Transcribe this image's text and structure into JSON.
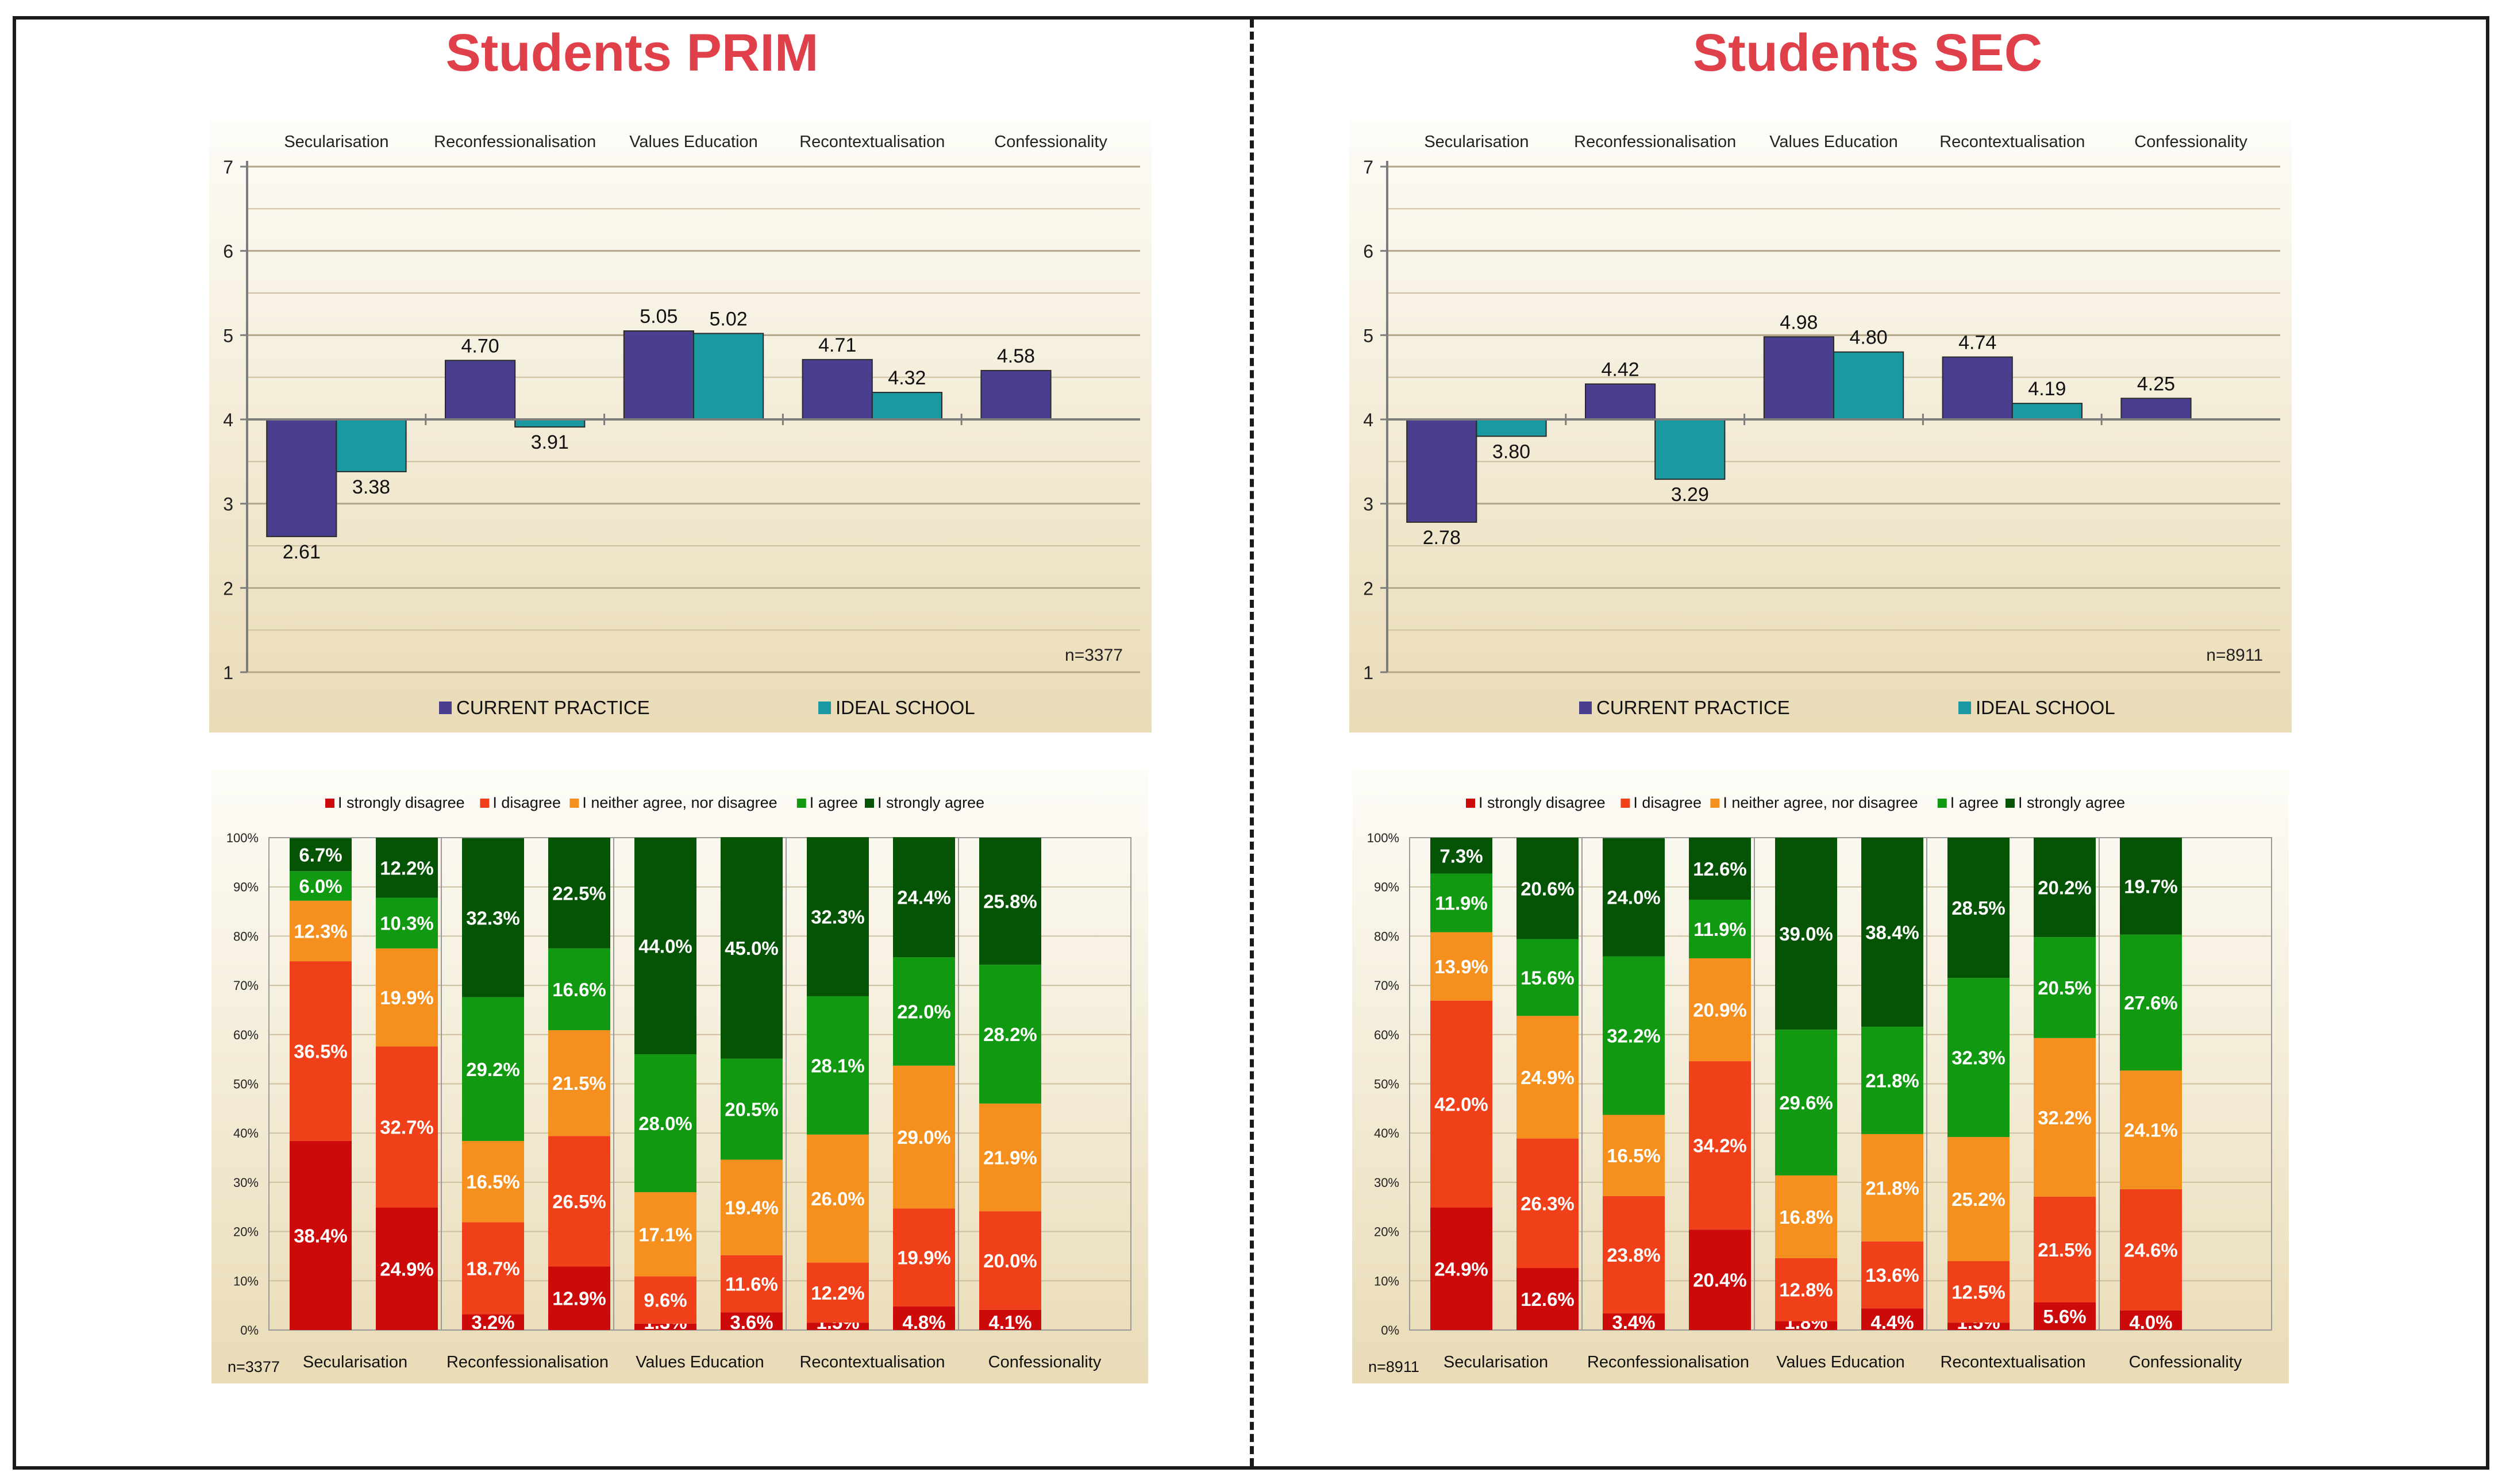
{
  "panels": [
    {
      "title": "Students PRIM",
      "chart_data": [
        {
          "type": "bar",
          "subtype": "baseline-4 diverging bar",
          "baseline": 4,
          "categories": [
            "Secularisation",
            "Reconfessionalisation",
            "Values Education",
            "Recontextualisation",
            "Confessionality"
          ],
          "series": [
            {
              "name": "CURRENT PRACTICE",
              "color": "#4a3f8f",
              "values": [
                2.61,
                4.7,
                5.05,
                4.71,
                4.58
              ],
              "labels": [
                "2.61",
                "4.70",
                "5.05",
                "4.71",
                "4.58"
              ]
            },
            {
              "name": "IDEAL SCHOOL",
              "color": "#1a9aa0",
              "values": [
                3.38,
                3.91,
                5.02,
                4.32,
                null
              ],
              "labels": [
                "3.38",
                "3.91",
                "5.02",
                "4.32",
                ""
              ]
            }
          ],
          "ylim": [
            1,
            7
          ],
          "yticks": [
            "1",
            "2",
            "3",
            "4",
            "5",
            "6",
            "7"
          ],
          "n_label": "n=3377",
          "legend_position": "bottom"
        },
        {
          "type": "bar",
          "subtype": "100% stacked bar",
          "legend": [
            {
              "name": "I strongly disagree",
              "color": "#cc0a0a"
            },
            {
              "name": "I disagree",
              "color": "#f0401a"
            },
            {
              "name": "I neither agree, nor disagree",
              "color": "#f5901e"
            },
            {
              "name": "I agree",
              "color": "#119a11"
            },
            {
              "name": "I strongly agree",
              "color": "#055405"
            }
          ],
          "groups": [
            "Secularisation",
            "Reconfessionalisation",
            "Values Education",
            "Recontextualisation",
            "Confessionality"
          ],
          "bars": [
            {
              "group": "Secularisation",
              "series": "CURRENT PRACTICE",
              "values": [
                38.4,
                36.5,
                12.3,
                6.0,
                6.7
              ],
              "labels": [
                "38.4%",
                "36.5%",
                "12.3%",
                "6.0%",
                "6.7%"
              ]
            },
            {
              "group": "Secularisation",
              "series": "IDEAL SCHOOL",
              "values": [
                24.9,
                32.7,
                19.9,
                10.3,
                12.2
              ],
              "labels": [
                "24.9%",
                "32.7%",
                "19.9%",
                "10.3%",
                "12.2%"
              ]
            },
            {
              "group": "Reconfessionalisation",
              "series": "CURRENT PRACTICE",
              "values": [
                3.2,
                18.7,
                16.5,
                29.2,
                32.3
              ],
              "labels": [
                "3.2%",
                "18.7%",
                "16.5%",
                "29.2%",
                "32.3%"
              ]
            },
            {
              "group": "Reconfessionalisation",
              "series": "IDEAL SCHOOL",
              "values": [
                12.9,
                26.5,
                21.5,
                16.6,
                22.5
              ],
              "labels": [
                "12.9%",
                "26.5%",
                "21.5%",
                "16.6%",
                "22.5%"
              ]
            },
            {
              "group": "Values Education",
              "series": "CURRENT PRACTICE",
              "values": [
                1.3,
                9.6,
                17.1,
                28.0,
                44.0
              ],
              "labels": [
                "1.3%",
                "9.6%",
                "17.1%",
                "28.0%",
                "44.0%"
              ]
            },
            {
              "group": "Values Education",
              "series": "IDEAL SCHOOL",
              "values": [
                3.6,
                11.6,
                19.4,
                20.5,
                45.0
              ],
              "labels": [
                "3.6%",
                "11.6%",
                "19.4%",
                "20.5%",
                "45.0%"
              ]
            },
            {
              "group": "Recontextualisation",
              "series": "CURRENT PRACTICE",
              "values": [
                1.5,
                12.2,
                26.0,
                28.1,
                32.3
              ],
              "labels": [
                "1.5%",
                "12.2%",
                "26.0%",
                "28.1%",
                "32.3%"
              ]
            },
            {
              "group": "Recontextualisation",
              "series": "IDEAL SCHOOL",
              "values": [
                4.8,
                19.9,
                29.0,
                22.0,
                24.4
              ],
              "labels": [
                "4.8%",
                "19.9%",
                "29.0%",
                "22.0%",
                "24.4%"
              ]
            },
            {
              "group": "Confessionality",
              "series": "CURRENT PRACTICE",
              "values": [
                4.1,
                20.0,
                21.9,
                28.2,
                25.8
              ],
              "labels": [
                "4.1%",
                "20.0%",
                "21.9%",
                "28.2%",
                "25.8%"
              ]
            }
          ],
          "yticks": [
            "0%",
            "10%",
            "20%",
            "30%",
            "40%",
            "50%",
            "60%",
            "70%",
            "80%",
            "90%",
            "100%"
          ],
          "ylim": [
            0,
            100
          ],
          "n_label": "n=3377",
          "legend_position": "top"
        }
      ]
    },
    {
      "title": "Students SEC",
      "chart_data": [
        {
          "type": "bar",
          "subtype": "baseline-4 diverging bar",
          "baseline": 4,
          "categories": [
            "Secularisation",
            "Reconfessionalisation",
            "Values Education",
            "Recontextualisation",
            "Confessionality"
          ],
          "series": [
            {
              "name": "CURRENT PRACTICE",
              "color": "#4a3f8f",
              "values": [
                2.78,
                4.42,
                4.98,
                4.74,
                4.25
              ],
              "labels": [
                "2.78",
                "4.42",
                "4.98",
                "4.74",
                "4.25"
              ]
            },
            {
              "name": "IDEAL SCHOOL",
              "color": "#1a9aa0",
              "values": [
                3.8,
                3.29,
                4.8,
                4.19,
                null
              ],
              "labels": [
                "3.80",
                "3.29",
                "4.80",
                "4.19",
                ""
              ]
            }
          ],
          "ylim": [
            1,
            7
          ],
          "yticks": [
            "1",
            "2",
            "3",
            "4",
            "5",
            "6",
            "7"
          ],
          "n_label": "n=8911",
          "legend_position": "bottom"
        },
        {
          "type": "bar",
          "subtype": "100% stacked bar",
          "legend": [
            {
              "name": "I strongly disagree",
              "color": "#cc0a0a"
            },
            {
              "name": "I disagree",
              "color": "#f0401a"
            },
            {
              "name": "I neither agree, nor disagree",
              "color": "#f5901e"
            },
            {
              "name": "I agree",
              "color": "#119a11"
            },
            {
              "name": "I strongly agree",
              "color": "#055405"
            }
          ],
          "groups": [
            "Secularisation",
            "Reconfessionalisation",
            "Values Education",
            "Recontextualisation",
            "Confessionality"
          ],
          "bars": [
            {
              "group": "Secularisation",
              "series": "CURRENT PRACTICE",
              "values": [
                24.9,
                42.0,
                13.9,
                11.9,
                7.3
              ],
              "labels": [
                "24.9%",
                "42.0%",
                "13.9%",
                "11.9%",
                "7.3%"
              ]
            },
            {
              "group": "Secularisation",
              "series": "IDEAL SCHOOL",
              "values": [
                12.6,
                26.3,
                24.9,
                15.6,
                20.6
              ],
              "labels": [
                "12.6%",
                "26.3%",
                "24.9%",
                "15.6%",
                "20.6%"
              ]
            },
            {
              "group": "Reconfessionalisation",
              "series": "CURRENT PRACTICE",
              "values": [
                3.4,
                23.8,
                16.5,
                32.2,
                24.0
              ],
              "labels": [
                "3.4%",
                "23.8%",
                "16.5%",
                "32.2%",
                "24.0%"
              ]
            },
            {
              "group": "Reconfessionalisation",
              "series": "IDEAL SCHOOL",
              "values": [
                20.4,
                34.2,
                20.9,
                11.9,
                12.6
              ],
              "labels": [
                "20.4%",
                "34.2%",
                "20.9%",
                "11.9%",
                "12.6%"
              ]
            },
            {
              "group": "Values Education",
              "series": "CURRENT PRACTICE",
              "values": [
                1.8,
                12.8,
                16.8,
                29.6,
                39.0
              ],
              "labels": [
                "1.8%",
                "12.8%",
                "16.8%",
                "29.6%",
                "39.0%"
              ]
            },
            {
              "group": "Values Education",
              "series": "IDEAL SCHOOL",
              "values": [
                4.4,
                13.6,
                21.8,
                21.8,
                38.4
              ],
              "labels": [
                "4.4%",
                "13.6%",
                "21.8%",
                "21.8%",
                "38.4%"
              ]
            },
            {
              "group": "Recontextualisation",
              "series": "CURRENT PRACTICE",
              "values": [
                1.5,
                12.5,
                25.2,
                32.3,
                28.5
              ],
              "labels": [
                "1.5%",
                "12.5%",
                "25.2%",
                "32.3%",
                "28.5%"
              ]
            },
            {
              "group": "Recontextualisation",
              "series": "IDEAL SCHOOL",
              "values": [
                5.6,
                21.5,
                32.2,
                20.5,
                20.2
              ],
              "labels": [
                "5.6%",
                "21.5%",
                "32.2%",
                "20.5%",
                "20.2%"
              ]
            },
            {
              "group": "Confessionality",
              "series": "CURRENT PRACTICE",
              "values": [
                4.0,
                24.6,
                24.1,
                27.6,
                19.7
              ],
              "labels": [
                "4.0%",
                "24.6%",
                "24.1%",
                "27.6%",
                "19.7%"
              ]
            }
          ],
          "yticks": [
            "0%",
            "10%",
            "20%",
            "30%",
            "40%",
            "50%",
            "60%",
            "70%",
            "80%",
            "90%",
            "100%"
          ],
          "ylim": [
            0,
            100
          ],
          "n_label": "n=8911",
          "legend_position": "top"
        }
      ]
    }
  ]
}
